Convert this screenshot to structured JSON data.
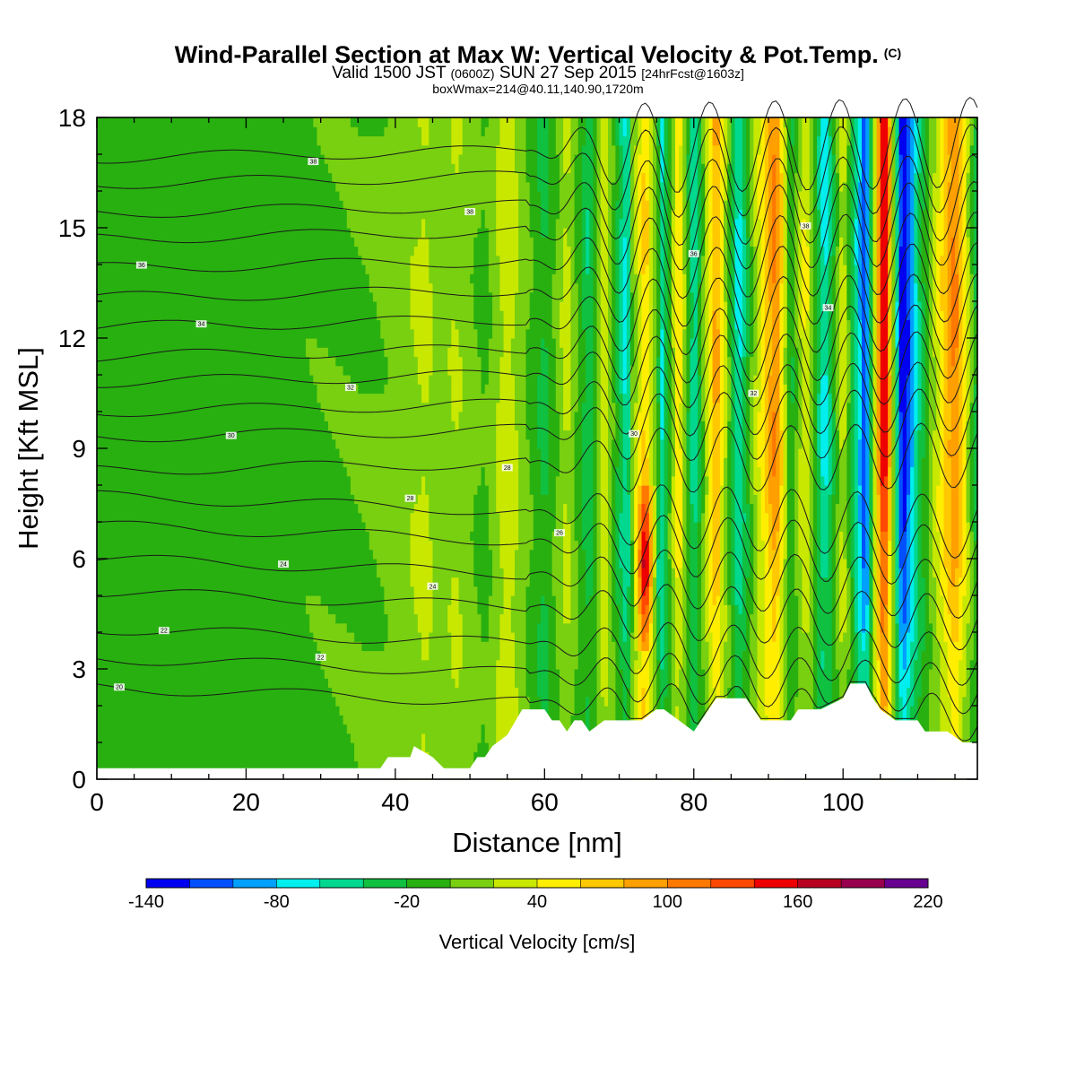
{
  "header": {
    "title": "Wind-Parallel Section at Max W: Vertical Velocity & Pot.Temp.",
    "copyright": "(C)",
    "valid_prefix": "Valid 1500 JST",
    "valid_utc": "(0600Z)",
    "valid_date": "SUN 27 Sep 2015",
    "forecast": "[24hrFcst@1603z]",
    "boxinfo": "boxWmax=214@40.11,140.90,1720m"
  },
  "chart_data": {
    "type": "heatmap",
    "title": "Wind-Parallel Section at Max W: Vertical Velocity & Pot.Temp.",
    "xlabel": "Distance [nm]",
    "ylabel": "Height [Kft MSL]",
    "xlim": [
      0,
      118
    ],
    "ylim": [
      0,
      18
    ],
    "xticks": [
      0,
      20,
      40,
      60,
      80,
      100
    ],
    "yticks": [
      0,
      3,
      6,
      9,
      12,
      15,
      18
    ],
    "colorbar": {
      "title": "Vertical Velocity [cm/s]",
      "bounds": [
        -140,
        -120,
        -100,
        -80,
        -60,
        -40,
        -20,
        0,
        20,
        40,
        60,
        80,
        100,
        120,
        140,
        160,
        180,
        200,
        220
      ],
      "labels": [
        "-140",
        "-80",
        "-20",
        "40",
        "100",
        "160",
        "220"
      ],
      "colors": [
        "#0000f0",
        "#0050ff",
        "#00a0ff",
        "#00eeee",
        "#00d890",
        "#10c040",
        "#28b010",
        "#78d010",
        "#c8e800",
        "#ffee00",
        "#ffc800",
        "#ffa000",
        "#ff7800",
        "#ff4800",
        "#ee0000",
        "#b80020",
        "#98004e",
        "#680090"
      ]
    },
    "w_columns": [
      {
        "x": 0,
        "w": -10
      },
      {
        "x": 20,
        "w": -12
      },
      {
        "x": 36,
        "w": 0
      },
      {
        "x": 41,
        "w": 10
      },
      {
        "x": 44,
        "w": 25
      },
      {
        "x": 46,
        "w": 5
      },
      {
        "x": 48,
        "w": 20
      },
      {
        "x": 52,
        "w": -5
      },
      {
        "x": 55,
        "w": 35
      },
      {
        "x": 57,
        "w": 10
      },
      {
        "x": 60,
        "w": -25
      },
      {
        "x": 63,
        "w": 25
      },
      {
        "x": 66,
        "w": -35
      },
      {
        "x": 68,
        "w": 35
      },
      {
        "x": 71,
        "w": -60
      },
      {
        "x": 73.5,
        "w": 150
      },
      {
        "x": 75.5,
        "w": -60
      },
      {
        "x": 78,
        "w": 50
      },
      {
        "x": 80,
        "w": -50
      },
      {
        "x": 83,
        "w": 75
      },
      {
        "x": 86,
        "w": -60
      },
      {
        "x": 88,
        "w": 10
      },
      {
        "x": 91,
        "w": 90
      },
      {
        "x": 93,
        "w": -20
      },
      {
        "x": 95,
        "w": 40
      },
      {
        "x": 97.5,
        "w": -60
      },
      {
        "x": 100,
        "w": 30
      },
      {
        "x": 103,
        "w": -100
      },
      {
        "x": 105.5,
        "w": 150
      },
      {
        "x": 108,
        "w": -130
      },
      {
        "x": 110,
        "w": -40
      },
      {
        "x": 113,
        "w": 40
      },
      {
        "x": 115,
        "w": 90
      },
      {
        "x": 118,
        "w": -30
      }
    ],
    "terrain": {
      "x": [
        0,
        38,
        39,
        42,
        42.5,
        45,
        46.5,
        50,
        51,
        52,
        53,
        55,
        57,
        58,
        60,
        61,
        62,
        63,
        64,
        65,
        66,
        68,
        68.5,
        72,
        73,
        75,
        76,
        78,
        80,
        81,
        82,
        83,
        84,
        87,
        88,
        89,
        91,
        93,
        94,
        96,
        97,
        100,
        101,
        102,
        103,
        104,
        105,
        107,
        108,
        110,
        111,
        113,
        114,
        116,
        118
      ],
      "h": [
        0.3,
        0.3,
        0.6,
        0.6,
        0.9,
        0.6,
        0.3,
        0.3,
        0.6,
        0.6,
        0.9,
        1.2,
        1.9,
        1.9,
        1.9,
        1.6,
        1.6,
        1.3,
        1.6,
        1.6,
        1.3,
        1.6,
        1.6,
        1.6,
        1.6,
        1.9,
        1.9,
        1.6,
        1.3,
        1.6,
        1.9,
        2.2,
        2.2,
        2.2,
        1.9,
        1.6,
        1.6,
        1.6,
        1.9,
        1.9,
        1.9,
        2.2,
        2.6,
        2.6,
        2.6,
        2.2,
        1.9,
        1.6,
        1.6,
        1.6,
        1.3,
        1.3,
        1.3,
        1.0,
        1.0
      ]
    },
    "theta_levels": [
      {
        "label": "20",
        "z0": 2.5
      },
      {
        "label": "22",
        "z0": 3.3
      },
      {
        "label": "22",
        "z0": 4.1
      },
      {
        "label": "24",
        "z0": 5.1
      },
      {
        "label": "24",
        "z0": 6.0
      },
      {
        "label": "26",
        "z0": 6.9
      },
      {
        "label": "28",
        "z0": 7.7
      },
      {
        "label": "28",
        "z0": 8.4
      },
      {
        "label": "30",
        "z0": 9.3
      },
      {
        "label": "30",
        "z0": 10.0
      },
      {
        "label": "32",
        "z0": 10.8
      },
      {
        "label": "32",
        "z0": 11.5
      },
      {
        "label": "34",
        "z0": 12.3
      },
      {
        "label": "34",
        "z0": 13.1
      },
      {
        "label": "36",
        "z0": 13.9
      },
      {
        "label": "36",
        "z0": 14.7
      },
      {
        "label": "38",
        "z0": 15.4
      },
      {
        "label": "38",
        "z0": 16.2
      },
      {
        "label": "38",
        "z0": 16.9
      }
    ]
  }
}
